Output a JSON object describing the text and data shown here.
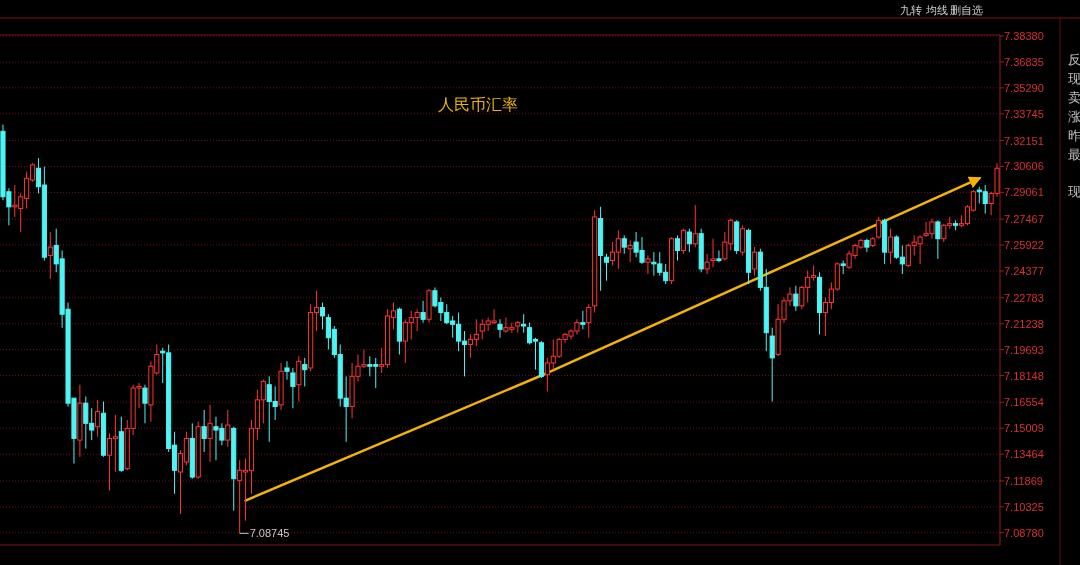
{
  "chart_data": {
    "type": "candlestick",
    "title": "人民币汇率",
    "categories": [
      null,
      null,
      null,
      null,
      null,
      null,
      null,
      null,
      null,
      null,
      null,
      null,
      null,
      null,
      null,
      null,
      null,
      null,
      null,
      null,
      null,
      null,
      null,
      null,
      null,
      null,
      null,
      null,
      null,
      null,
      null,
      null,
      null,
      null,
      null,
      null,
      null,
      null,
      null,
      null,
      null,
      null,
      null,
      null,
      null,
      null,
      null,
      null,
      null,
      null,
      null,
      null,
      null,
      null,
      null,
      null,
      null,
      null,
      null,
      null,
      null,
      null,
      null,
      null,
      null,
      null,
      null,
      null,
      null,
      null,
      null,
      null,
      null,
      null,
      null,
      null,
      null,
      null,
      null,
      null,
      null,
      null,
      null,
      null,
      null,
      null,
      null,
      null,
      null,
      null,
      null,
      null,
      null,
      null,
      null,
      null,
      null,
      null,
      null,
      null,
      null,
      null,
      null,
      null,
      null,
      null,
      null,
      null,
      null,
      null,
      null,
      null,
      null,
      null,
      null,
      null,
      null,
      null,
      null,
      null,
      null,
      null,
      null,
      null,
      null,
      null,
      null,
      null,
      null,
      null,
      null,
      null,
      null,
      null,
      null,
      null,
      null,
      null,
      null,
      null,
      null,
      null,
      null,
      null,
      null,
      null,
      null,
      null,
      null,
      null,
      null,
      null,
      null,
      null,
      null,
      null,
      null,
      null,
      null,
      null,
      null,
      null,
      null,
      null,
      null,
      null,
      null,
      null,
      null
    ],
    "ohlc": [
      [
        7.327,
        7.331,
        7.286,
        7.288
      ],
      [
        7.291,
        7.293,
        7.271,
        7.282
      ],
      [
        7.282,
        7.295,
        7.276,
        7.283
      ],
      [
        7.281,
        7.29,
        7.267,
        7.288
      ],
      [
        7.287,
        7.303,
        7.281,
        7.299
      ],
      [
        7.298,
        7.308,
        7.297,
        7.307
      ],
      [
        7.305,
        7.311,
        7.29,
        7.294
      ],
      [
        7.295,
        7.306,
        7.25,
        7.252
      ],
      [
        7.253,
        7.267,
        7.239,
        7.258
      ],
      [
        7.259,
        7.269,
        7.243,
        7.248
      ],
      [
        7.251,
        7.256,
        7.21,
        7.218
      ],
      [
        7.221,
        7.225,
        7.163,
        7.165
      ],
      [
        7.168,
        7.168,
        7.129,
        7.144
      ],
      [
        7.143,
        7.176,
        7.133,
        7.165
      ],
      [
        7.165,
        7.169,
        7.138,
        7.153
      ],
      [
        7.153,
        7.162,
        7.143,
        7.149
      ],
      [
        7.151,
        7.167,
        7.145,
        7.16
      ],
      [
        7.159,
        7.166,
        7.133,
        7.134
      ],
      [
        7.134,
        7.147,
        7.113,
        7.144
      ],
      [
        7.144,
        7.158,
        7.124,
        7.145
      ],
      [
        7.148,
        7.157,
        7.124,
        7.125
      ],
      [
        7.126,
        7.155,
        7.125,
        7.15
      ],
      [
        7.15,
        7.176,
        7.146,
        7.174
      ],
      [
        7.174,
        7.177,
        7.162,
        7.175
      ],
      [
        7.174,
        7.176,
        7.153,
        7.165
      ],
      [
        7.164,
        7.19,
        7.154,
        7.187
      ],
      [
        7.183,
        7.2,
        7.182,
        7.194
      ],
      [
        7.196,
        7.198,
        7.177,
        7.195
      ],
      [
        7.195,
        7.2,
        7.136,
        7.138
      ],
      [
        7.14,
        7.148,
        7.111,
        7.125
      ],
      [
        7.124,
        7.137,
        7.099,
        7.135
      ],
      [
        7.13,
        7.148,
        7.128,
        7.144
      ],
      [
        7.144,
        7.153,
        7.12,
        7.121
      ],
      [
        7.121,
        7.154,
        7.12,
        7.151
      ],
      [
        7.151,
        7.161,
        7.136,
        7.144
      ],
      [
        7.144,
        7.164,
        7.13,
        7.153
      ],
      [
        7.151,
        7.157,
        7.131,
        7.149
      ],
      [
        7.15,
        7.153,
        7.14,
        7.143
      ],
      [
        7.143,
        7.161,
        7.139,
        7.152
      ],
      [
        7.15,
        7.151,
        7.101,
        7.12
      ],
      [
        7.119,
        7.131,
        7.08745,
        7.125
      ],
      [
        7.124,
        7.132,
        7.095,
        7.125
      ],
      [
        7.125,
        7.155,
        7.111,
        7.15
      ],
      [
        7.15,
        7.173,
        7.143,
        7.167
      ],
      [
        7.167,
        7.179,
        7.153,
        7.178
      ],
      [
        7.176,
        7.181,
        7.142,
        7.166
      ],
      [
        7.166,
        7.175,
        7.155,
        7.163
      ],
      [
        7.164,
        7.189,
        7.161,
        7.184
      ],
      [
        7.186,
        7.19,
        7.179,
        7.184
      ],
      [
        7.183,
        7.186,
        7.162,
        7.175
      ],
      [
        7.176,
        7.193,
        7.166,
        7.19
      ],
      [
        7.188,
        7.192,
        7.175,
        7.185
      ],
      [
        7.186,
        7.224,
        7.184,
        7.219
      ],
      [
        7.219,
        7.232,
        7.208,
        7.222
      ],
      [
        7.222,
        7.225,
        7.209,
        7.217
      ],
      [
        7.216,
        7.218,
        7.197,
        7.204
      ],
      [
        7.209,
        7.211,
        7.192,
        7.194
      ],
      [
        7.194,
        7.2,
        7.163,
        7.168
      ],
      [
        7.168,
        7.181,
        7.142,
        7.163
      ],
      [
        7.163,
        7.189,
        7.156,
        7.181
      ],
      [
        7.181,
        7.194,
        7.178,
        7.187
      ],
      [
        7.187,
        7.197,
        7.186,
        7.188
      ],
      [
        7.188,
        7.193,
        7.181,
        7.187
      ],
      [
        7.188,
        7.192,
        7.174,
        7.187
      ],
      [
        7.187,
        7.198,
        7.183,
        7.188
      ],
      [
        7.188,
        7.221,
        7.186,
        7.217
      ],
      [
        7.216,
        7.225,
        7.209,
        7.22
      ],
      [
        7.221,
        7.222,
        7.194,
        7.202
      ],
      [
        7.202,
        7.215,
        7.189,
        7.213
      ],
      [
        7.213,
        7.22,
        7.203,
        7.216
      ],
      [
        7.216,
        7.221,
        7.208,
        7.219
      ],
      [
        7.219,
        7.226,
        7.213,
        7.215
      ],
      [
        7.215,
        7.233,
        7.213,
        7.232
      ],
      [
        7.232,
        7.234,
        7.222,
        7.223
      ],
      [
        7.225,
        7.228,
        7.214,
        7.219
      ],
      [
        7.219,
        7.224,
        7.212,
        7.213
      ],
      [
        7.214,
        7.217,
        7.204,
        7.212
      ],
      [
        7.212,
        7.219,
        7.196,
        7.202
      ],
      [
        7.202,
        7.208,
        7.181,
        7.2
      ],
      [
        7.2,
        7.206,
        7.192,
        7.203
      ],
      [
        7.203,
        7.215,
        7.199,
        7.206
      ],
      [
        7.208,
        7.215,
        7.203,
        7.212
      ],
      [
        7.212,
        7.216,
        7.208,
        7.214
      ],
      [
        7.213,
        7.221,
        7.212,
        7.214
      ],
      [
        7.212,
        7.215,
        7.204,
        7.209
      ],
      [
        7.208,
        7.216,
        7.207,
        7.21
      ],
      [
        7.209,
        7.213,
        7.207,
        7.21
      ],
      [
        7.211,
        7.214,
        7.207,
        7.213
      ],
      [
        7.212,
        7.218,
        7.207,
        7.211
      ],
      [
        7.21,
        7.213,
        7.2,
        7.201
      ],
      [
        7.203,
        7.204,
        7.185,
        7.202
      ],
      [
        7.201,
        7.202,
        7.18,
        7.181
      ],
      [
        7.182,
        7.192,
        7.172,
        7.189
      ],
      [
        7.189,
        7.203,
        7.185,
        7.193
      ],
      [
        7.193,
        7.204,
        7.192,
        7.203
      ],
      [
        7.203,
        7.207,
        7.201,
        7.206
      ],
      [
        7.205,
        7.209,
        7.203,
        7.208
      ],
      [
        7.208,
        7.215,
        7.206,
        7.213
      ],
      [
        7.213,
        7.22,
        7.209,
        7.212
      ],
      [
        7.213,
        7.224,
        7.204,
        7.222
      ],
      [
        7.223,
        7.28,
        7.219,
        7.276
      ],
      [
        7.275,
        7.282,
        7.232,
        7.253
      ],
      [
        7.252,
        7.254,
        7.238,
        7.249
      ],
      [
        7.25,
        7.261,
        7.247,
        7.255
      ],
      [
        7.255,
        7.268,
        7.245,
        7.263
      ],
      [
        7.263,
        7.265,
        7.254,
        7.258
      ],
      [
        7.257,
        7.262,
        7.249,
        7.259
      ],
      [
        7.261,
        7.267,
        7.252,
        7.255
      ],
      [
        7.256,
        7.264,
        7.248,
        7.249
      ],
      [
        7.249,
        7.253,
        7.242,
        7.251
      ],
      [
        7.249,
        7.255,
        7.241,
        7.248
      ],
      [
        7.248,
        7.255,
        7.241,
        7.243
      ],
      [
        7.243,
        7.248,
        7.236,
        7.238
      ],
      [
        7.238,
        7.264,
        7.236,
        7.263
      ],
      [
        7.263,
        7.265,
        7.25,
        7.256
      ],
      [
        7.256,
        7.269,
        7.254,
        7.268
      ],
      [
        7.267,
        7.269,
        7.255,
        7.26
      ],
      [
        7.26,
        7.283,
        7.258,
        7.266
      ],
      [
        7.266,
        7.269,
        7.243,
        7.245
      ],
      [
        7.245,
        7.254,
        7.242,
        7.249
      ],
      [
        7.25,
        7.263,
        7.246,
        7.251
      ],
      [
        7.251,
        7.256,
        7.249,
        7.25
      ],
      [
        7.251,
        7.267,
        7.25,
        7.261
      ],
      [
        7.26,
        7.275,
        7.256,
        7.274
      ],
      [
        7.273,
        7.274,
        7.254,
        7.256
      ],
      [
        7.255,
        7.271,
        7.253,
        7.269
      ],
      [
        7.268,
        7.269,
        7.236,
        7.243
      ],
      [
        7.245,
        7.258,
        7.241,
        7.255
      ],
      [
        7.255,
        7.257,
        7.232,
        7.234
      ],
      [
        7.234,
        7.245,
        7.196,
        7.207
      ],
      [
        7.205,
        7.21,
        7.166,
        7.192
      ],
      [
        7.194,
        7.224,
        7.193,
        7.215
      ],
      [
        7.215,
        7.228,
        7.213,
        7.226
      ],
      [
        7.226,
        7.234,
        7.223,
        7.23
      ],
      [
        7.23,
        7.235,
        7.22,
        7.223
      ],
      [
        7.223,
        7.235,
        7.221,
        7.234
      ],
      [
        7.234,
        7.244,
        7.225,
        7.24
      ],
      [
        7.24,
        7.247,
        7.238,
        7.241
      ],
      [
        7.24,
        7.243,
        7.206,
        7.219
      ],
      [
        7.219,
        7.228,
        7.205,
        7.225
      ],
      [
        7.225,
        7.237,
        7.221,
        7.233
      ],
      [
        7.233,
        7.249,
        7.232,
        7.248
      ],
      [
        7.248,
        7.25,
        7.242,
        7.247
      ],
      [
        7.246,
        7.256,
        7.245,
        7.254
      ],
      [
        7.253,
        7.26,
        7.251,
        7.259
      ],
      [
        7.258,
        7.263,
        7.257,
        7.262
      ],
      [
        7.262,
        7.263,
        7.255,
        7.258
      ],
      [
        7.259,
        7.264,
        7.258,
        7.263
      ],
      [
        7.264,
        7.276,
        7.263,
        7.274
      ],
      [
        7.274,
        7.275,
        7.248,
        7.255
      ],
      [
        7.255,
        7.269,
        7.248,
        7.264
      ],
      [
        7.264,
        7.265,
        7.251,
        7.252
      ],
      [
        7.252,
        7.259,
        7.242,
        7.248
      ],
      [
        7.247,
        7.26,
        7.246,
        7.259
      ],
      [
        7.259,
        7.265,
        7.253,
        7.261
      ],
      [
        7.26,
        7.265,
        7.248,
        7.264
      ],
      [
        7.265,
        7.273,
        7.264,
        7.266
      ],
      [
        7.266,
        7.275,
        7.263,
        7.273
      ],
      [
        7.273,
        7.274,
        7.251,
        7.263
      ],
      [
        7.263,
        7.272,
        7.261,
        7.271
      ],
      [
        7.271,
        7.276,
        7.269,
        7.272
      ],
      [
        7.272,
        7.274,
        7.268,
        7.271
      ],
      [
        7.271,
        7.277,
        7.27,
        7.272
      ],
      [
        7.272,
        7.283,
        7.271,
        7.282
      ],
      [
        7.28,
        7.292,
        7.279,
        7.291
      ],
      [
        7.292,
        7.294,
        7.284,
        7.291
      ],
      [
        7.291,
        7.295,
        7.278,
        7.284
      ],
      [
        7.284,
        7.291,
        7.277,
        7.29
      ],
      [
        7.29,
        7.308,
        7.288,
        7.305
      ]
    ],
    "series": [
      {
        "type": "line",
        "color": "#f5b400",
        "values": [
          null,
          null,
          null,
          null,
          null,
          null,
          null,
          null,
          null,
          null,
          null,
          null,
          null,
          null,
          null,
          null,
          null,
          null,
          null,
          null,
          null,
          null,
          null,
          null,
          null,
          null,
          null,
          null,
          null,
          null,
          null,
          null,
          null,
          null,
          null,
          null,
          null,
          null,
          null,
          null,
          null,
          7.107,
          null,
          null,
          null,
          null,
          null,
          null,
          null,
          null,
          null,
          null,
          null,
          null,
          null,
          null,
          null,
          null,
          null,
          null,
          null,
          null,
          null,
          null,
          null,
          null,
          null,
          null,
          null,
          null,
          null,
          null,
          null,
          null,
          null,
          null,
          null,
          null,
          null,
          null,
          null,
          null,
          null,
          null,
          null,
          null,
          null,
          null,
          null,
          null,
          null,
          null,
          7.183,
          null,
          null,
          null,
          null,
          null,
          null,
          null,
          null,
          null,
          null,
          null,
          null,
          null,
          null,
          null,
          null,
          null,
          null,
          null,
          null,
          null,
          null,
          null,
          null,
          null,
          null,
          null,
          null,
          null,
          null,
          null,
          null,
          null,
          null,
          null,
          null,
          null,
          null,
          null,
          null,
          null,
          null,
          null,
          null,
          null,
          null,
          null,
          null,
          null,
          null,
          null,
          null,
          null,
          null,
          null,
          null,
          null,
          null,
          null,
          null,
          null,
          null,
          null,
          null,
          null,
          null,
          null,
          null,
          null,
          null,
          null,
          null,
          7.299,
          null,
          null,
          null
        ]
      }
    ],
    "ylim": [
      7.0805,
      7.3838
    ],
    "yticks": [
      {
        "value": 7.3838,
        "label": "7.38380"
      },
      7.36835,
      {
        "value": 7.3529,
        "label": "7.35290"
      },
      7.33745,
      7.32151,
      7.30606,
      7.29061,
      7.27467,
      7.25922,
      7.24377,
      7.22783,
      7.21238,
      7.19693,
      7.18148,
      7.16554,
      7.15009,
      7.13464,
      7.11869,
      7.10325,
      {
        "value": 7.0878,
        "label": "7.08780"
      }
    ],
    "grid": "y",
    "annotations": [
      "7.08745",
      "九转",
      "均线",
      "删自选",
      "反",
      "现",
      "卖",
      "涨",
      "昨",
      "最",
      "现"
    ]
  }
}
